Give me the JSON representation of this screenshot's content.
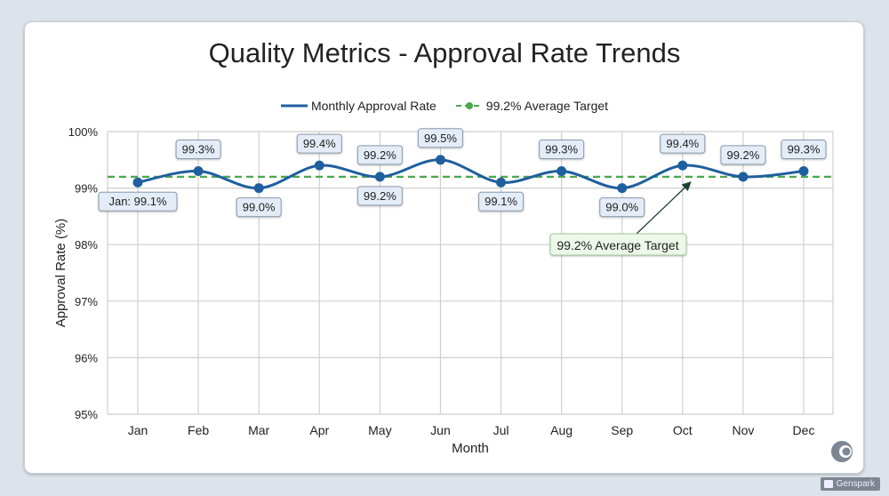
{
  "chart_data": {
    "type": "line",
    "title": "Quality Metrics - Approval Rate Trends",
    "xlabel": "Month",
    "ylabel": "Approval Rate (%)",
    "ylim": [
      95,
      100
    ],
    "yticks": [
      95,
      96,
      97,
      98,
      99,
      100
    ],
    "ytick_labels": [
      "95%",
      "96%",
      "97%",
      "98%",
      "99%",
      "100%"
    ],
    "categories": [
      "Jan",
      "Feb",
      "Mar",
      "Apr",
      "May",
      "Jun",
      "Jul",
      "Aug",
      "Sep",
      "Oct",
      "Nov",
      "Dec"
    ],
    "grid": true,
    "legend_position": "top-center",
    "series": [
      {
        "name": "Monthly Approval Rate",
        "color": "#1f5f9e",
        "values": [
          99.1,
          99.3,
          99.0,
          99.4,
          99.2,
          99.5,
          99.1,
          99.3,
          99.0,
          99.4,
          99.2,
          99.3
        ],
        "data_labels": [
          "Jan: 99.1%",
          "99.3%",
          "99.0%",
          "99.4%",
          "99.2%",
          "99.5%",
          "99.1%",
          "99.3%",
          "99.0%",
          "99.4%",
          "99.2%",
          "99.3%"
        ],
        "label_side": [
          "below",
          "above",
          "below",
          "above",
          "above",
          "above",
          "below",
          "above",
          "below",
          "above",
          "above",
          "above"
        ]
      },
      {
        "name": "99.2% Average Target",
        "color": "#4aa84a",
        "style": "dashed",
        "value": 99.2
      }
    ],
    "extra_labels": [
      {
        "text": "99.2%",
        "month": "May",
        "side": "below"
      }
    ],
    "annotation": {
      "text": "99.2% Average Target",
      "points_to_month": "Oct",
      "points_to_value": 99.2
    }
  },
  "watermark": {
    "label": "Genspark"
  }
}
